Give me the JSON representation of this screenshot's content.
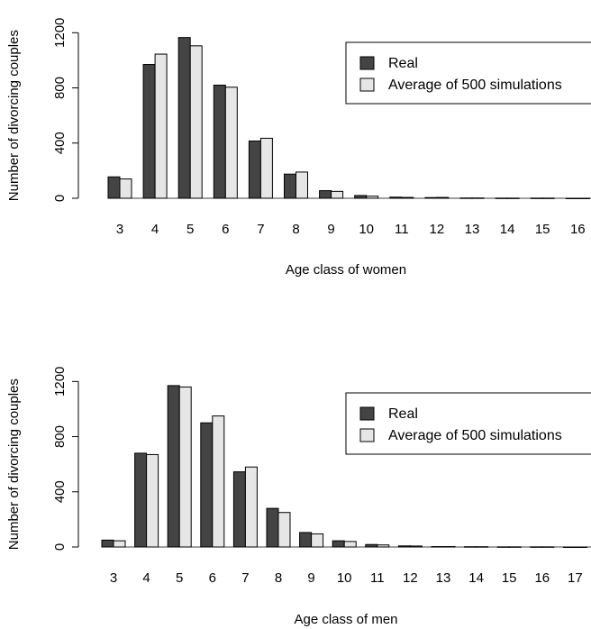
{
  "chart_data": [
    {
      "type": "bar",
      "xlabel": "Age class of women",
      "ylabel": "Number of divorcing couples",
      "categories": [
        "3",
        "4",
        "5",
        "6",
        "7",
        "8",
        "9",
        "10",
        "11",
        "12",
        "13",
        "14",
        "15",
        "16"
      ],
      "yticks": [
        0,
        400,
        800,
        1200
      ],
      "ylim": [
        0,
        1300
      ],
      "legend": "top-right",
      "series": [
        {
          "name": "Real",
          "color": "#444444",
          "values": [
            155,
            970,
            1165,
            820,
            415,
            175,
            55,
            20,
            8,
            5,
            2,
            1,
            1,
            0
          ]
        },
        {
          "name": "Average of 500 simulations",
          "color": "#e6e6e6",
          "values": [
            140,
            1045,
            1105,
            805,
            435,
            190,
            50,
            15,
            6,
            6,
            2,
            1,
            1,
            0
          ]
        }
      ]
    },
    {
      "type": "bar",
      "xlabel": "Age class of men",
      "ylabel": "Number of divorcing couples",
      "categories": [
        "3",
        "4",
        "5",
        "6",
        "7",
        "8",
        "9",
        "10",
        "11",
        "12",
        "13",
        "14",
        "15",
        "16",
        "17"
      ],
      "yticks": [
        0,
        400,
        800,
        1200
      ],
      "ylim": [
        0,
        1300
      ],
      "legend": "top-right",
      "series": [
        {
          "name": "Real",
          "color": "#444444",
          "values": [
            50,
            680,
            1170,
            900,
            545,
            280,
            105,
            45,
            18,
            8,
            3,
            2,
            1,
            1,
            0
          ]
        },
        {
          "name": "Average of 500 simulations",
          "color": "#e6e6e6",
          "values": [
            45,
            670,
            1160,
            950,
            580,
            250,
            95,
            40,
            15,
            7,
            3,
            2,
            1,
            1,
            0
          ]
        }
      ]
    }
  ]
}
